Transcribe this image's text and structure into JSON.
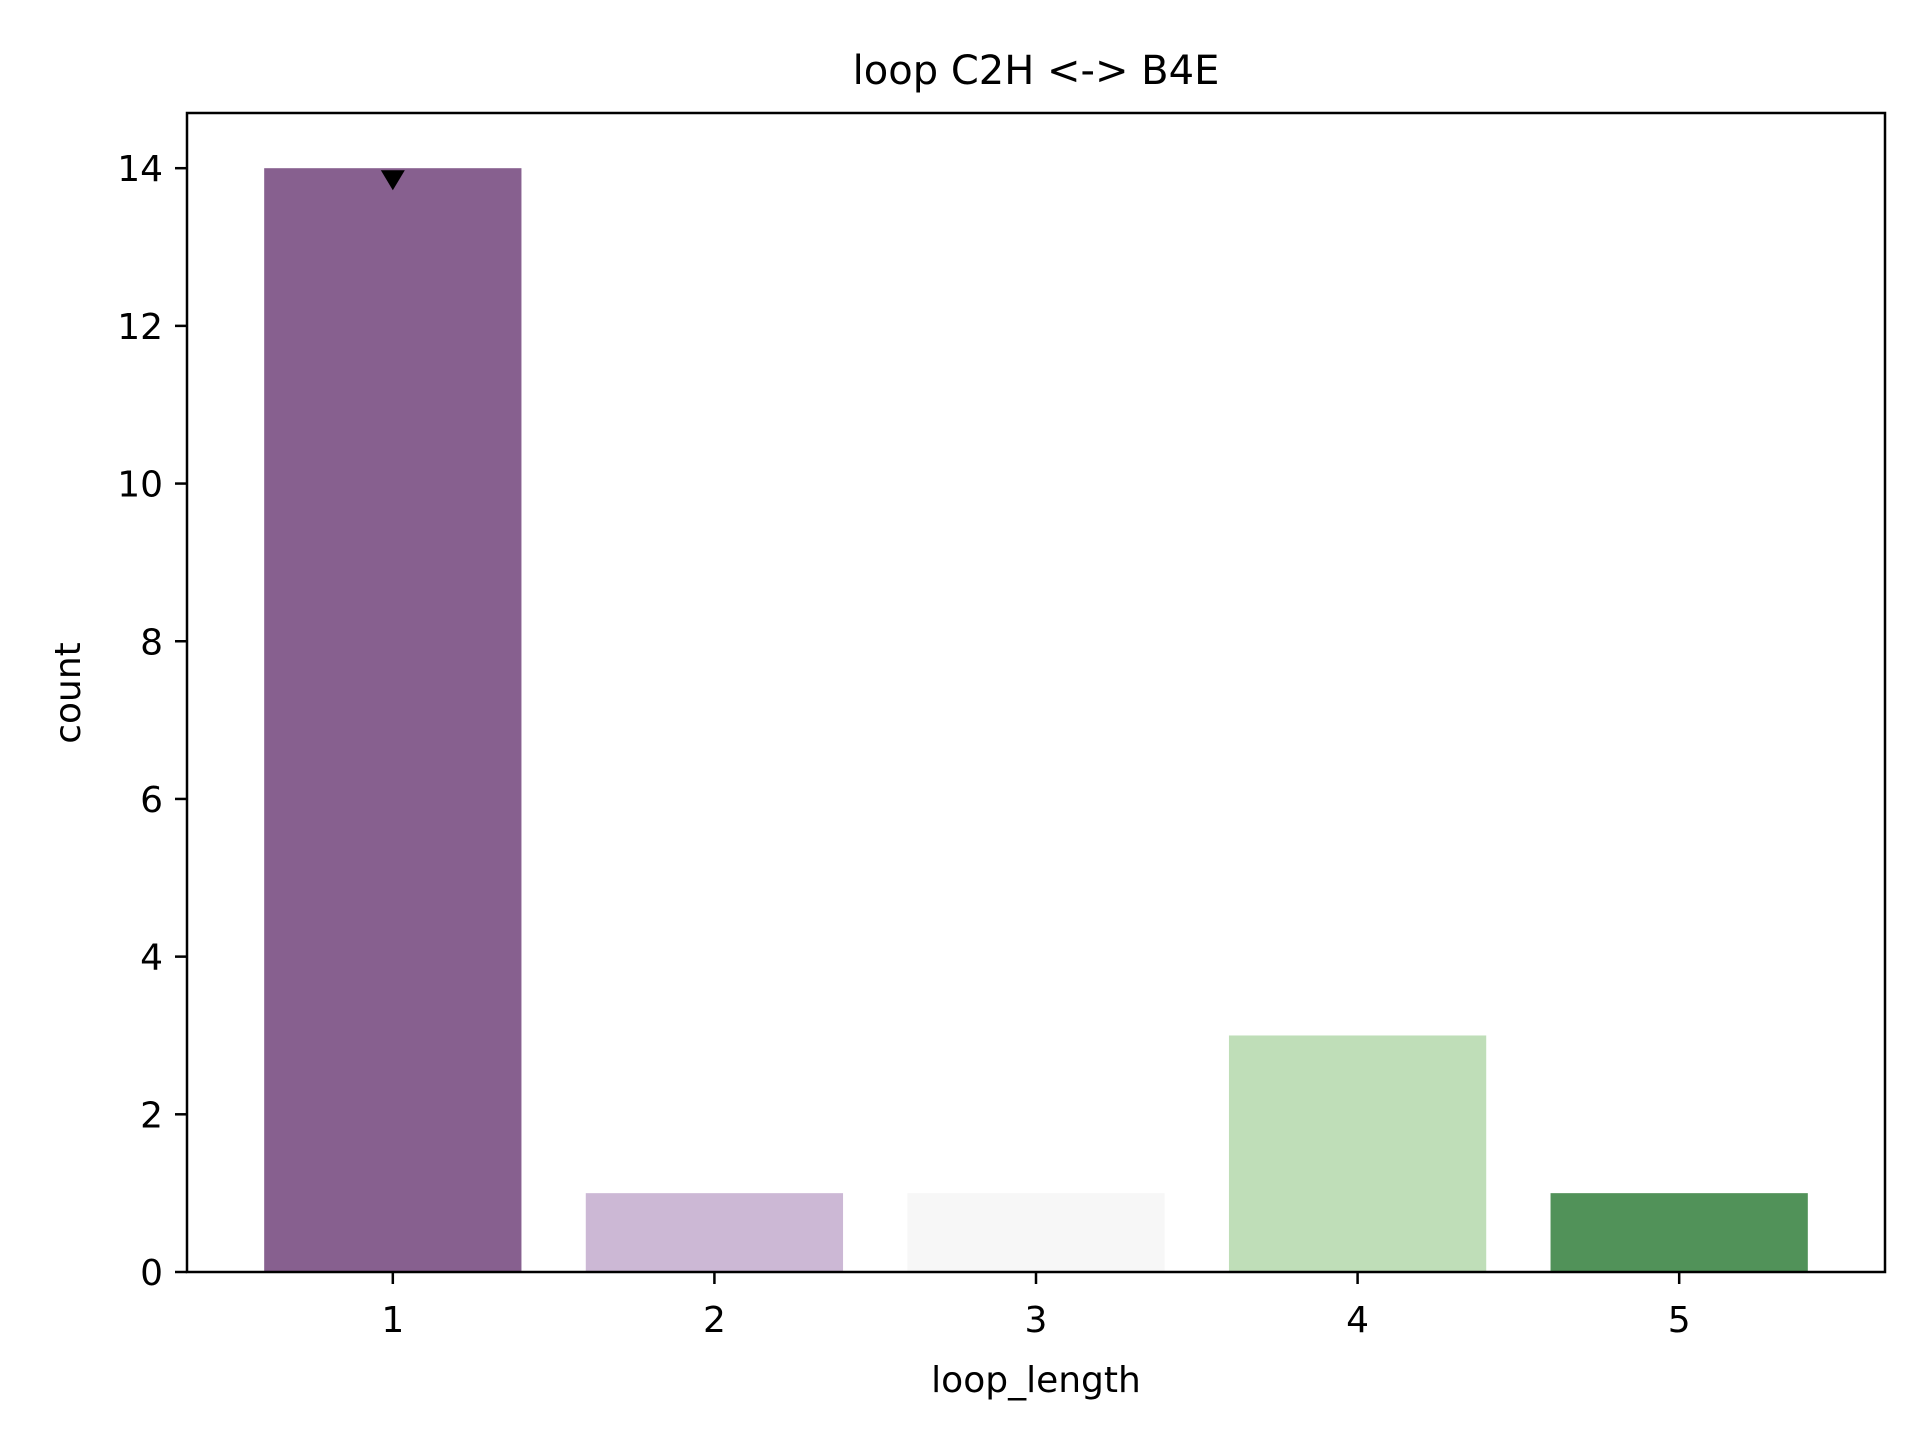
{
  "chart_data": {
    "type": "bar",
    "title": "loop C2H <-> B4E",
    "xlabel": "loop_length",
    "ylabel": "count",
    "categories": [
      "1",
      "2",
      "3",
      "4",
      "5"
    ],
    "values": [
      14,
      1,
      1,
      3,
      1
    ],
    "colors": [
      "#87608f",
      "#ccb8d5",
      "#f7f7f7",
      "#bfdeb8",
      "#519259"
    ],
    "ylim": [
      0,
      14.7
    ],
    "yticks": [
      0,
      2,
      4,
      6,
      8,
      10,
      12,
      14
    ],
    "marker": {
      "category": "1",
      "value": 14,
      "shape": "triangle-down",
      "color": "#000000"
    },
    "grid": false,
    "legend": "none"
  }
}
